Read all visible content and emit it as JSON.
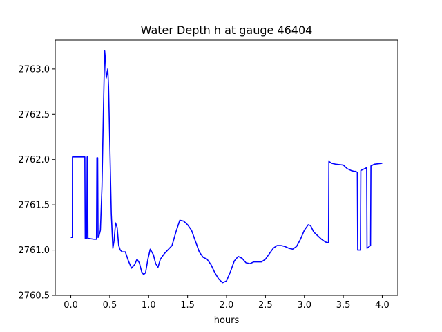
{
  "chart_data": {
    "type": "line",
    "title": "Water Depth h at gauge 46404",
    "xlabel": "hours",
    "ylabel": "",
    "xlim": [
      -0.2,
      4.2
    ],
    "ylim": [
      2760.5,
      2763.32
    ],
    "xticks": [
      0.0,
      0.5,
      1.0,
      1.5,
      2.0,
      2.5,
      3.0,
      3.5,
      4.0
    ],
    "xtick_labels": [
      "0.0",
      "0.5",
      "1.0",
      "1.5",
      "2.0",
      "2.5",
      "3.0",
      "3.5",
      "4.0"
    ],
    "yticks": [
      2760.5,
      2761.0,
      2761.5,
      2762.0,
      2762.5,
      2763.0
    ],
    "ytick_labels": [
      "2760.5",
      "2761.0",
      "2761.5",
      "2762.0",
      "2762.5",
      "2763.0"
    ],
    "grid": false,
    "series": [
      {
        "color": "#0000ff",
        "x": [
          0.0,
          0.02,
          0.021,
          0.18,
          0.185,
          0.205,
          0.21,
          0.215,
          0.22,
          0.3,
          0.33,
          0.335,
          0.345,
          0.35,
          0.36,
          0.38,
          0.4,
          0.42,
          0.435,
          0.445,
          0.455,
          0.465,
          0.475,
          0.485,
          0.5,
          0.52,
          0.54,
          0.555,
          0.575,
          0.595,
          0.615,
          0.635,
          0.66,
          0.7,
          0.74,
          0.78,
          0.82,
          0.85,
          0.88,
          0.91,
          0.935,
          0.96,
          0.99,
          1.02,
          1.06,
          1.09,
          1.12,
          1.15,
          1.2,
          1.3,
          1.35,
          1.4,
          1.45,
          1.5,
          1.55,
          1.6,
          1.65,
          1.7,
          1.75,
          1.8,
          1.85,
          1.9,
          1.95,
          2.0,
          2.05,
          2.1,
          2.15,
          2.2,
          2.25,
          2.3,
          2.35,
          2.4,
          2.45,
          2.5,
          2.55,
          2.6,
          2.65,
          2.7,
          2.75,
          2.8,
          2.85,
          2.9,
          2.95,
          3.0,
          3.05,
          3.08,
          3.12,
          3.17,
          3.22,
          3.27,
          3.31,
          3.315,
          3.35,
          3.4,
          3.5,
          3.55,
          3.6,
          3.64,
          3.66,
          3.68,
          3.685,
          3.72,
          3.725,
          3.8,
          3.805,
          3.85,
          3.855,
          3.9,
          4.0
        ],
        "y": [
          2761.14,
          2761.14,
          2762.03,
          2762.03,
          2761.13,
          2761.13,
          2762.03,
          2762.03,
          2761.13,
          2761.12,
          2761.12,
          2762.02,
          2762.02,
          2761.14,
          2761.15,
          2761.22,
          2761.7,
          2762.6,
          2763.2,
          2763.1,
          2762.9,
          2762.95,
          2763.0,
          2762.8,
          2762.2,
          2761.4,
          2761.02,
          2761.1,
          2761.3,
          2761.25,
          2761.05,
          2761.0,
          2760.98,
          2760.98,
          2760.88,
          2760.8,
          2760.84,
          2760.9,
          2760.86,
          2760.76,
          2760.73,
          2760.75,
          2760.9,
          2761.01,
          2760.95,
          2760.85,
          2760.81,
          2760.9,
          2760.96,
          2761.05,
          2761.2,
          2761.33,
          2761.32,
          2761.28,
          2761.22,
          2761.1,
          2760.98,
          2760.92,
          2760.9,
          2760.84,
          2760.75,
          2760.68,
          2760.64,
          2760.66,
          2760.76,
          2760.88,
          2760.93,
          2760.91,
          2760.86,
          2760.85,
          2760.87,
          2760.87,
          2760.87,
          2760.9,
          2760.96,
          2761.02,
          2761.05,
          2761.05,
          2761.04,
          2761.02,
          2761.01,
          2761.04,
          2761.12,
          2761.22,
          2761.28,
          2761.27,
          2761.2,
          2761.16,
          2761.12,
          2761.09,
          2761.08,
          2761.98,
          2761.96,
          2761.95,
          2761.94,
          2761.9,
          2761.88,
          2761.87,
          2761.87,
          2761.86,
          2761.0,
          2761.0,
          2761.88,
          2761.91,
          2761.02,
          2761.05,
          2761.93,
          2761.95,
          2761.96
        ]
      }
    ]
  }
}
